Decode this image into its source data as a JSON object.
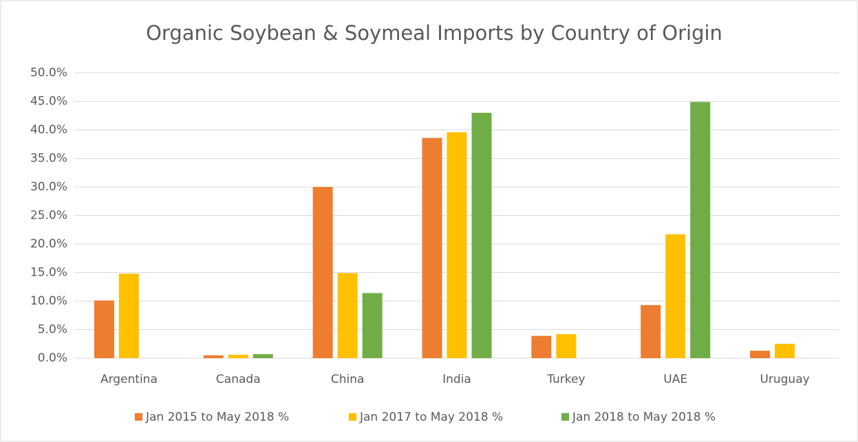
{
  "chart_data": {
    "type": "bar",
    "title": "Organic Soybean & Soymeal Imports by Country of Origin",
    "categories": [
      "Argentina",
      "Canada",
      "China",
      "India",
      "Turkey",
      "UAE",
      "Uruguay"
    ],
    "series": [
      {
        "name": "Jan 2015 to May 2018 %",
        "color": "#ed7d31",
        "values": [
          10.1,
          0.5,
          30.0,
          38.6,
          3.9,
          9.3,
          1.3
        ]
      },
      {
        "name": "Jan 2017 to May 2018 %",
        "color": "#ffc000",
        "values": [
          14.8,
          0.6,
          14.9,
          39.6,
          4.2,
          21.7,
          2.5
        ]
      },
      {
        "name": "Jan 2018 to May 2018 %",
        "color": "#70ad47",
        "values": [
          0,
          0.7,
          11.4,
          43.0,
          0,
          44.9,
          0
        ]
      }
    ],
    "ylim": [
      0,
      50
    ],
    "yticks": [
      {
        "value": 0,
        "label": "0.0%"
      },
      {
        "value": 5,
        "label": "5.0%"
      },
      {
        "value": 10,
        "label": "10.0%"
      },
      {
        "value": 15,
        "label": "15.0%"
      },
      {
        "value": 20,
        "label": "20.0%"
      },
      {
        "value": 25,
        "label": "25.0%"
      },
      {
        "value": 30,
        "label": "30.0%"
      },
      {
        "value": 35,
        "label": "35.0%"
      },
      {
        "value": 40,
        "label": "40.0%"
      },
      {
        "value": 45,
        "label": "45.0%"
      },
      {
        "value": 50,
        "label": "50.0%"
      }
    ],
    "grid": true,
    "legend": "bottom"
  }
}
